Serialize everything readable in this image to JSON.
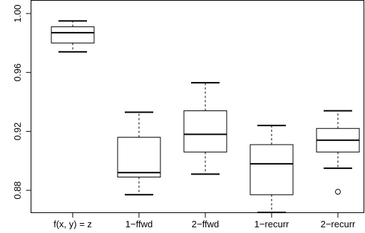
{
  "chart_data": {
    "type": "boxplot",
    "ylim": [
      0.8665,
      1.0
    ],
    "ytick_values": [
      0.88,
      0.92,
      0.96,
      1.0
    ],
    "ytick_labels": [
      "0.88",
      "0.92",
      "0.96",
      "1.00"
    ],
    "categories": [
      "f(x, y) = z",
      "1−ffwd",
      "2−ffwd",
      "1−recurr",
      "2−recurr"
    ],
    "grid": false,
    "legend": "none",
    "series": [
      {
        "category": "f(x, y) = z",
        "whisker_low": 0.974,
        "q1": 0.98,
        "median": 0.987,
        "q3": 0.991,
        "whisker_high": 0.995,
        "outliers": []
      },
      {
        "category": "1−ffwd",
        "whisker_low": 0.877,
        "q1": 0.889,
        "median": 0.892,
        "q3": 0.916,
        "whisker_high": 0.933,
        "outliers": []
      },
      {
        "category": "2−ffwd",
        "whisker_low": 0.891,
        "q1": 0.906,
        "median": 0.918,
        "q3": 0.934,
        "whisker_high": 0.953,
        "outliers": []
      },
      {
        "category": "1−recurr",
        "whisker_low": 0.865,
        "q1": 0.877,
        "median": 0.898,
        "q3": 0.911,
        "whisker_high": 0.924,
        "outliers": []
      },
      {
        "category": "2−recurr",
        "whisker_low": 0.895,
        "q1": 0.906,
        "median": 0.914,
        "q3": 0.922,
        "whisker_high": 0.934,
        "outliers": [
          0.879
        ]
      }
    ]
  }
}
